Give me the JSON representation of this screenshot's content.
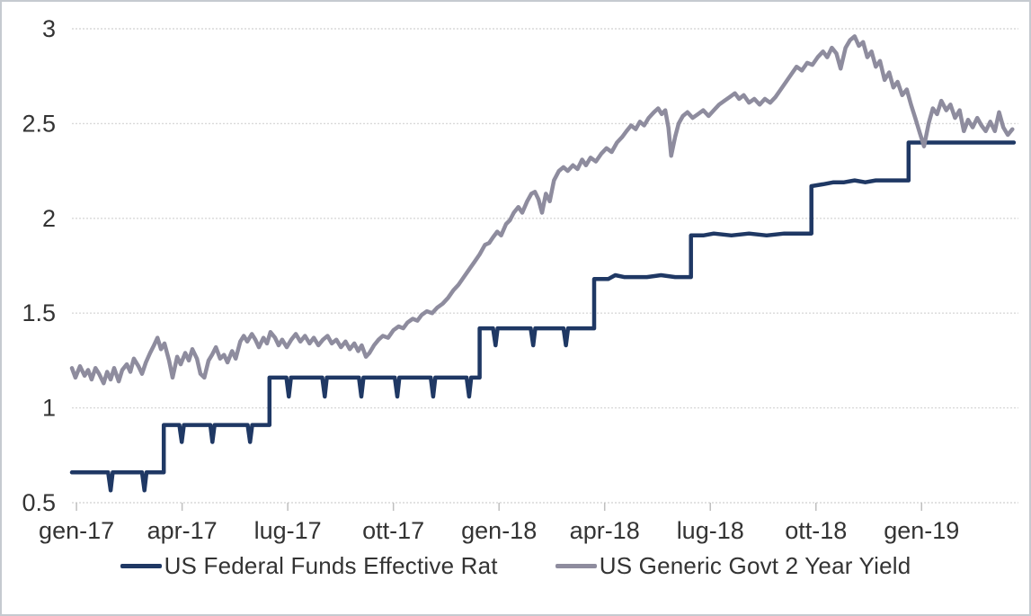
{
  "colors": {
    "fed_funds_line": "#1f3864",
    "two_year_line": "#8e8c9e",
    "gridline": "#d9d9d9",
    "axis_tick": "#bfbfbf",
    "label_text": "#333333",
    "frame_border": "#c5cad0",
    "background": "#ffffff"
  },
  "legend": {
    "items": [
      {
        "label": "US Federal Funds Effective Rat",
        "color": "#1f3864"
      },
      {
        "label": "US Generic Govt 2 Year Yield",
        "color": "#8e8c9e"
      }
    ]
  },
  "chart_data": {
    "type": "line",
    "title": "",
    "xlabel": "",
    "ylabel": "",
    "grid": "horizontal-dotted",
    "legend_position": "bottom-center",
    "x_axis": {
      "unit": "months-since-jan-2017",
      "t_min": -0.13,
      "t_max": 26.75,
      "tick_t": [
        0,
        3,
        6,
        9,
        12,
        15,
        18,
        21,
        24
      ],
      "tick_labels": [
        "gen-17",
        "apr-17",
        "lug-17",
        "ott-17",
        "gen-18",
        "apr-18",
        "lug-18",
        "ott-18",
        "gen-19"
      ]
    },
    "y_axis": {
      "min": 0.5,
      "max": 3,
      "ticks": [
        0.5,
        1,
        1.5,
        2,
        2.5,
        3
      ],
      "labels": [
        "0.5",
        "1",
        "1.5",
        "2",
        "2.5",
        "3"
      ]
    },
    "series": [
      {
        "name": "US Federal Funds Effective Rat",
        "color": "#1f3864",
        "width": 4.5,
        "points": [
          [
            -0.13,
            0.66
          ],
          [
            0.9,
            0.66
          ],
          [
            0.97,
            0.565
          ],
          [
            1.03,
            0.66
          ],
          [
            1.86,
            0.66
          ],
          [
            1.93,
            0.565
          ],
          [
            1.99,
            0.66
          ],
          [
            2.48,
            0.66
          ],
          [
            2.48,
            0.91
          ],
          [
            2.92,
            0.91
          ],
          [
            2.99,
            0.82
          ],
          [
            3.05,
            0.91
          ],
          [
            3.8,
            0.91
          ],
          [
            3.86,
            0.82
          ],
          [
            3.92,
            0.91
          ],
          [
            4.86,
            0.91
          ],
          [
            4.93,
            0.82
          ],
          [
            4.99,
            0.91
          ],
          [
            5.48,
            0.91
          ],
          [
            5.48,
            1.16
          ],
          [
            5.96,
            1.16
          ],
          [
            6.03,
            1.06
          ],
          [
            6.09,
            1.16
          ],
          [
            6.98,
            1.16
          ],
          [
            7.05,
            1.06
          ],
          [
            7.11,
            1.16
          ],
          [
            8.02,
            1.16
          ],
          [
            8.09,
            1.06
          ],
          [
            8.15,
            1.16
          ],
          [
            9.04,
            1.16
          ],
          [
            9.11,
            1.06
          ],
          [
            9.17,
            1.16
          ],
          [
            10.06,
            1.16
          ],
          [
            10.13,
            1.06
          ],
          [
            10.19,
            1.16
          ],
          [
            11.08,
            1.16
          ],
          [
            11.15,
            1.06
          ],
          [
            11.21,
            1.16
          ],
          [
            11.45,
            1.16
          ],
          [
            11.45,
            1.42
          ],
          [
            11.83,
            1.42
          ],
          [
            11.9,
            1.33
          ],
          [
            11.96,
            1.42
          ],
          [
            12.9,
            1.42
          ],
          [
            12.97,
            1.33
          ],
          [
            13.03,
            1.42
          ],
          [
            13.83,
            1.42
          ],
          [
            13.9,
            1.33
          ],
          [
            13.96,
            1.42
          ],
          [
            14.7,
            1.42
          ],
          [
            14.7,
            1.68
          ],
          [
            15.1,
            1.68
          ],
          [
            15.3,
            1.7
          ],
          [
            15.55,
            1.69
          ],
          [
            16.2,
            1.69
          ],
          [
            16.6,
            1.7
          ],
          [
            17.0,
            1.69
          ],
          [
            17.45,
            1.69
          ],
          [
            17.45,
            1.91
          ],
          [
            17.8,
            1.91
          ],
          [
            18.1,
            1.92
          ],
          [
            18.6,
            1.91
          ],
          [
            19.1,
            1.92
          ],
          [
            19.6,
            1.91
          ],
          [
            20.1,
            1.92
          ],
          [
            20.6,
            1.92
          ],
          [
            20.87,
            1.92
          ],
          [
            20.87,
            2.17
          ],
          [
            21.2,
            2.18
          ],
          [
            21.5,
            2.19
          ],
          [
            21.8,
            2.19
          ],
          [
            22.1,
            2.2
          ],
          [
            22.4,
            2.19
          ],
          [
            22.7,
            2.2
          ],
          [
            23.3,
            2.2
          ],
          [
            23.63,
            2.2
          ],
          [
            23.63,
            2.4
          ],
          [
            26.62,
            2.4
          ]
        ]
      },
      {
        "name": "US Generic Govt 2 Year Yield",
        "color": "#8e8c9e",
        "width": 4.5,
        "points": [
          [
            -0.13,
            1.21
          ],
          [
            -0.03,
            1.16
          ],
          [
            0.1,
            1.22
          ],
          [
            0.23,
            1.17
          ],
          [
            0.33,
            1.2
          ],
          [
            0.43,
            1.15
          ],
          [
            0.54,
            1.21
          ],
          [
            0.64,
            1.18
          ],
          [
            0.77,
            1.13
          ],
          [
            0.87,
            1.19
          ],
          [
            0.97,
            1.15
          ],
          [
            1.07,
            1.21
          ],
          [
            1.2,
            1.14
          ],
          [
            1.3,
            1.2
          ],
          [
            1.43,
            1.23
          ],
          [
            1.53,
            1.19
          ],
          [
            1.63,
            1.26
          ],
          [
            1.76,
            1.22
          ],
          [
            1.86,
            1.18
          ],
          [
            1.97,
            1.24
          ],
          [
            2.09,
            1.29
          ],
          [
            2.2,
            1.33
          ],
          [
            2.3,
            1.37
          ],
          [
            2.4,
            1.31
          ],
          [
            2.5,
            1.34
          ],
          [
            2.63,
            1.25
          ],
          [
            2.73,
            1.16
          ],
          [
            2.86,
            1.27
          ],
          [
            2.96,
            1.23
          ],
          [
            3.09,
            1.29
          ],
          [
            3.19,
            1.25
          ],
          [
            3.29,
            1.31
          ],
          [
            3.42,
            1.26
          ],
          [
            3.52,
            1.18
          ],
          [
            3.63,
            1.16
          ],
          [
            3.75,
            1.25
          ],
          [
            3.85,
            1.28
          ],
          [
            3.96,
            1.32
          ],
          [
            4.08,
            1.26
          ],
          [
            4.19,
            1.28
          ],
          [
            4.29,
            1.24
          ],
          [
            4.42,
            1.3
          ],
          [
            4.52,
            1.26
          ],
          [
            4.65,
            1.35
          ],
          [
            4.75,
            1.38
          ],
          [
            4.85,
            1.35
          ],
          [
            4.98,
            1.39
          ],
          [
            5.08,
            1.36
          ],
          [
            5.18,
            1.32
          ],
          [
            5.31,
            1.37
          ],
          [
            5.41,
            1.34
          ],
          [
            5.51,
            1.4
          ],
          [
            5.64,
            1.37
          ],
          [
            5.74,
            1.33
          ],
          [
            5.84,
            1.36
          ],
          [
            5.97,
            1.32
          ],
          [
            6.1,
            1.36
          ],
          [
            6.23,
            1.39
          ],
          [
            6.36,
            1.35
          ],
          [
            6.49,
            1.38
          ],
          [
            6.62,
            1.34
          ],
          [
            6.74,
            1.37
          ],
          [
            6.87,
            1.33
          ],
          [
            7.0,
            1.36
          ],
          [
            7.13,
            1.38
          ],
          [
            7.25,
            1.34
          ],
          [
            7.38,
            1.36
          ],
          [
            7.51,
            1.32
          ],
          [
            7.64,
            1.35
          ],
          [
            7.76,
            1.31
          ],
          [
            7.89,
            1.34
          ],
          [
            8.0,
            1.3
          ],
          [
            8.1,
            1.33
          ],
          [
            8.22,
            1.27
          ],
          [
            8.32,
            1.29
          ],
          [
            8.45,
            1.33
          ],
          [
            8.58,
            1.36
          ],
          [
            8.7,
            1.38
          ],
          [
            8.85,
            1.37
          ],
          [
            9.0,
            1.41
          ],
          [
            9.15,
            1.43
          ],
          [
            9.28,
            1.42
          ],
          [
            9.4,
            1.45
          ],
          [
            9.55,
            1.47
          ],
          [
            9.68,
            1.46
          ],
          [
            9.8,
            1.49
          ],
          [
            9.95,
            1.51
          ],
          [
            10.1,
            1.5
          ],
          [
            10.25,
            1.53
          ],
          [
            10.4,
            1.55
          ],
          [
            10.55,
            1.58
          ],
          [
            10.7,
            1.62
          ],
          [
            10.85,
            1.65
          ],
          [
            11.0,
            1.69
          ],
          [
            11.15,
            1.73
          ],
          [
            11.3,
            1.77
          ],
          [
            11.45,
            1.81
          ],
          [
            11.6,
            1.86
          ],
          [
            11.72,
            1.87
          ],
          [
            11.83,
            1.9
          ],
          [
            11.95,
            1.93
          ],
          [
            12.06,
            1.91
          ],
          [
            12.2,
            1.97
          ],
          [
            12.31,
            1.99
          ],
          [
            12.42,
            2.03
          ],
          [
            12.55,
            2.06
          ],
          [
            12.66,
            2.03
          ],
          [
            12.8,
            2.09
          ],
          [
            12.92,
            2.13
          ],
          [
            13.02,
            2.14
          ],
          [
            13.12,
            2.1
          ],
          [
            13.22,
            2.03
          ],
          [
            13.33,
            2.13
          ],
          [
            13.44,
            2.09
          ],
          [
            13.56,
            2.2
          ],
          [
            13.7,
            2.25
          ],
          [
            13.83,
            2.27
          ],
          [
            13.95,
            2.25
          ],
          [
            14.1,
            2.28
          ],
          [
            14.23,
            2.26
          ],
          [
            14.36,
            2.31
          ],
          [
            14.47,
            2.28
          ],
          [
            14.6,
            2.32
          ],
          [
            14.75,
            2.3
          ],
          [
            14.9,
            2.34
          ],
          [
            15.05,
            2.37
          ],
          [
            15.2,
            2.35
          ],
          [
            15.35,
            2.4
          ],
          [
            15.5,
            2.43
          ],
          [
            15.62,
            2.46
          ],
          [
            15.75,
            2.49
          ],
          [
            15.88,
            2.47
          ],
          [
            16.0,
            2.51
          ],
          [
            16.12,
            2.49
          ],
          [
            16.25,
            2.53
          ],
          [
            16.4,
            2.56
          ],
          [
            16.52,
            2.58
          ],
          [
            16.62,
            2.55
          ],
          [
            16.72,
            2.57
          ],
          [
            16.81,
            2.48
          ],
          [
            16.89,
            2.33
          ],
          [
            17.0,
            2.43
          ],
          [
            17.1,
            2.5
          ],
          [
            17.22,
            2.54
          ],
          [
            17.35,
            2.56
          ],
          [
            17.5,
            2.53
          ],
          [
            17.65,
            2.55
          ],
          [
            17.8,
            2.57
          ],
          [
            17.95,
            2.54
          ],
          [
            18.1,
            2.57
          ],
          [
            18.25,
            2.6
          ],
          [
            18.4,
            2.62
          ],
          [
            18.55,
            2.64
          ],
          [
            18.7,
            2.66
          ],
          [
            18.82,
            2.63
          ],
          [
            18.95,
            2.65
          ],
          [
            19.1,
            2.61
          ],
          [
            19.25,
            2.63
          ],
          [
            19.4,
            2.6
          ],
          [
            19.55,
            2.63
          ],
          [
            19.7,
            2.61
          ],
          [
            19.85,
            2.64
          ],
          [
            20.0,
            2.68
          ],
          [
            20.15,
            2.72
          ],
          [
            20.3,
            2.76
          ],
          [
            20.45,
            2.8
          ],
          [
            20.6,
            2.78
          ],
          [
            20.75,
            2.82
          ],
          [
            20.9,
            2.81
          ],
          [
            21.05,
            2.85
          ],
          [
            21.2,
            2.88
          ],
          [
            21.32,
            2.85
          ],
          [
            21.45,
            2.9
          ],
          [
            21.58,
            2.87
          ],
          [
            21.7,
            2.79
          ],
          [
            21.84,
            2.9
          ],
          [
            21.97,
            2.94
          ],
          [
            22.1,
            2.96
          ],
          [
            22.22,
            2.91
          ],
          [
            22.34,
            2.93
          ],
          [
            22.46,
            2.85
          ],
          [
            22.58,
            2.88
          ],
          [
            22.7,
            2.8
          ],
          [
            22.82,
            2.83
          ],
          [
            22.95,
            2.73
          ],
          [
            23.08,
            2.77
          ],
          [
            23.2,
            2.69
          ],
          [
            23.32,
            2.72
          ],
          [
            23.45,
            2.65
          ],
          [
            23.58,
            2.68
          ],
          [
            23.7,
            2.6
          ],
          [
            23.82,
            2.53
          ],
          [
            23.95,
            2.45
          ],
          [
            24.07,
            2.38
          ],
          [
            24.2,
            2.5
          ],
          [
            24.32,
            2.58
          ],
          [
            24.44,
            2.55
          ],
          [
            24.56,
            2.62
          ],
          [
            24.7,
            2.57
          ],
          [
            24.82,
            2.6
          ],
          [
            24.95,
            2.53
          ],
          [
            25.08,
            2.57
          ],
          [
            25.2,
            2.46
          ],
          [
            25.32,
            2.52
          ],
          [
            25.45,
            2.48
          ],
          [
            25.58,
            2.53
          ],
          [
            25.7,
            2.49
          ],
          [
            25.82,
            2.46
          ],
          [
            25.95,
            2.51
          ],
          [
            26.08,
            2.46
          ],
          [
            26.2,
            2.56
          ],
          [
            26.32,
            2.48
          ],
          [
            26.45,
            2.44
          ],
          [
            26.58,
            2.47
          ]
        ]
      }
    ]
  }
}
